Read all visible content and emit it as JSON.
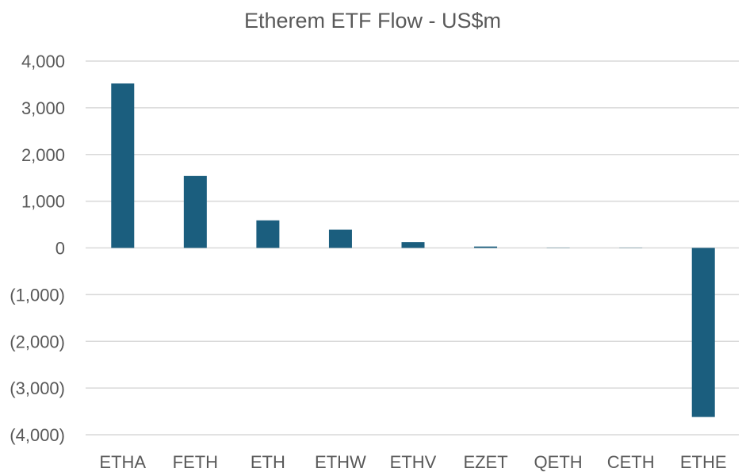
{
  "chart_data": {
    "type": "bar",
    "title": "Etherem ETF Flow - US$m",
    "xlabel": "",
    "ylabel": "",
    "categories": [
      "ETHA",
      "FETH",
      "ETH",
      "ETHW",
      "ETHV",
      "EZET",
      "QETH",
      "CETH",
      "ETHE"
    ],
    "values": [
      3520,
      1540,
      590,
      390,
      125,
      30,
      5,
      5,
      -3620
    ],
    "ylim": [
      -4000,
      4000
    ],
    "yticks": [
      4000,
      3000,
      2000,
      1000,
      0,
      -1000,
      -2000,
      -3000,
      -4000
    ],
    "ytick_labels": [
      "4,000",
      "3,000",
      "2,000",
      "1,000",
      "0",
      "(1,000)",
      "(2,000)",
      "(3,000)",
      "(4,000)"
    ],
    "grid": true,
    "legend": "none",
    "bar_color": "#1b5e7e"
  }
}
